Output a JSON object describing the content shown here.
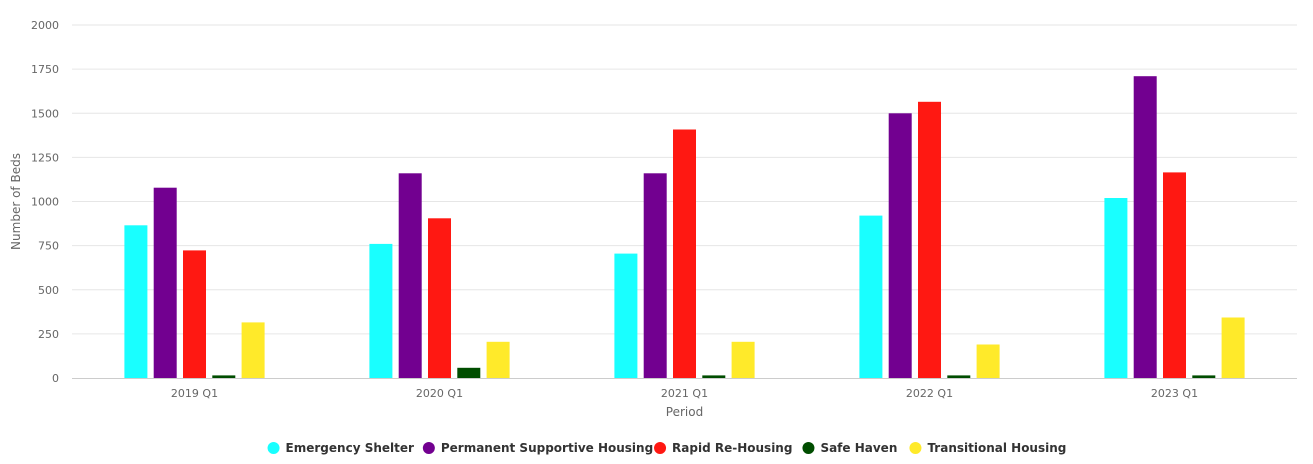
{
  "chart_data": {
    "type": "bar",
    "xlabel": "Period",
    "ylabel": "Number of Beds",
    "ylim": [
      0,
      2000
    ],
    "yticks": [
      0,
      250,
      500,
      750,
      1000,
      1250,
      1500,
      1750,
      2000
    ],
    "grid": true,
    "legend_position": "bottom-center",
    "categories": [
      "2019 Q1",
      "2020 Q1",
      "2021 Q1",
      "2022 Q1",
      "2023 Q1"
    ],
    "series": [
      {
        "name": "Emergency Shelter",
        "color": "#19ffff",
        "values": [
          865,
          760,
          705,
          920,
          1020
        ]
      },
      {
        "name": "Permanent Supportive Housing",
        "color": "#720090",
        "values": [
          1078,
          1160,
          1160,
          1500,
          1710
        ]
      },
      {
        "name": "Rapid Re-Housing",
        "color": "#ff1812",
        "values": [
          723,
          905,
          1408,
          1565,
          1165
        ]
      },
      {
        "name": "Safe Haven",
        "color": "#004d00",
        "values": [
          15,
          58,
          15,
          15,
          15
        ]
      },
      {
        "name": "Transitional Housing",
        "color": "#ffea2a",
        "values": [
          315,
          205,
          205,
          190,
          343
        ]
      }
    ]
  }
}
